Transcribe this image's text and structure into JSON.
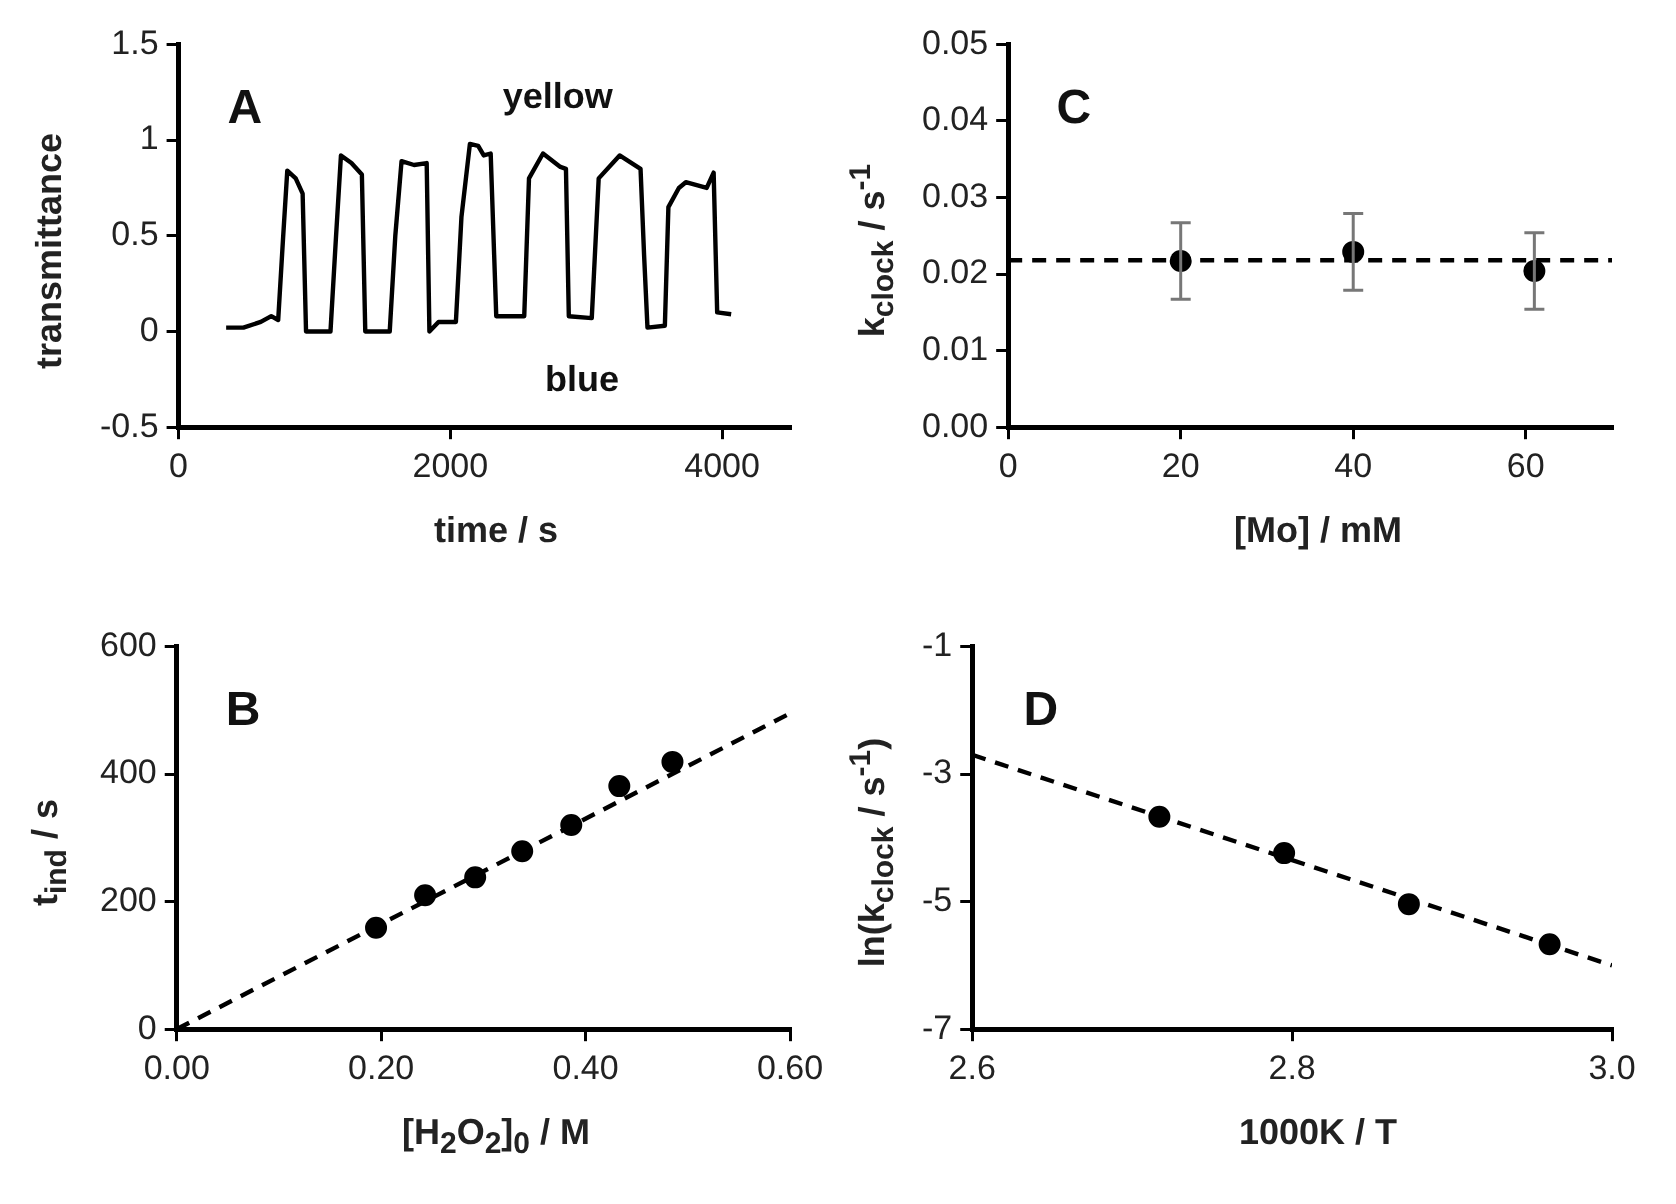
{
  "chart_data": [
    {
      "type": "line",
      "title": "A",
      "xlabel": "time / s",
      "ylabel": "transmittance",
      "annotations": [
        "yellow",
        "blue"
      ],
      "series": [
        {
          "color": "#000000",
          "x": [
            350,
            477,
            605,
            682,
            733,
            770,
            800,
            862,
            913,
            938,
            1118,
            1159,
            1195,
            1272,
            1349,
            1374,
            1554,
            1595,
            1641,
            1733,
            1826,
            1846,
            1913,
            2041,
            2082,
            2144,
            2205,
            2246,
            2297,
            2338,
            2544,
            2579,
            2682,
            2810,
            2851,
            2872,
            3041,
            3092,
            3246,
            3400,
            3426,
            3451,
            3579,
            3605,
            3682,
            3733,
            3887,
            3938,
            3964,
            4067
          ],
          "values": [
            0.02,
            0.02,
            0.05,
            0.08,
            0.06,
            0.5,
            0.84,
            0.8,
            0.72,
            0,
            0,
            0.5,
            0.92,
            0.88,
            0.82,
            0,
            0,
            0.5,
            0.89,
            0.87,
            0.88,
            0,
            0.05,
            0.05,
            0.6,
            0.98,
            0.97,
            0.92,
            0.93,
            0.08,
            0.08,
            0.8,
            0.93,
            0.86,
            0.85,
            0.08,
            0.07,
            0.8,
            0.92,
            0.85,
            0.4,
            0.02,
            0.03,
            0.65,
            0.75,
            0.78,
            0.75,
            0.83,
            0.1,
            0.09
          ]
        }
      ],
      "xlim": [
        0,
        4500
      ],
      "xticks": [
        0,
        2000,
        4000
      ],
      "ylim": [
        -0.5,
        1.5
      ],
      "yticks": [
        -0.5,
        0,
        0.5,
        1,
        1.5
      ]
    },
    {
      "type": "scatter",
      "title": "C",
      "xlabel": "[Mo] / mM",
      "ylabel": "k$_{clock}$ / s$^{-1}$",
      "marker": "circle",
      "series": [
        {
          "color": "#000000",
          "x": [
            20,
            40,
            61
          ],
          "values": [
            0.0217,
            0.0229,
            0.0204
          ],
          "errors": [
            0.005,
            0.005,
            0.005
          ]
        }
      ],
      "ref_lines": [
        {
          "axis": "y",
          "value": 0.0218,
          "color": "#000000",
          "line_style": "dashed"
        }
      ],
      "xlim": [
        0,
        70
      ],
      "xticks": [
        0,
        20,
        40,
        60
      ],
      "ylim": [
        0,
        0.05
      ],
      "yticks": [
        {
          "value": 0,
          "label": "0.00"
        },
        0.01,
        0.02,
        0.03,
        0.04,
        0.05
      ]
    },
    {
      "type": "scatter",
      "title": "B",
      "xlabel": "[H$_{2}$O$_{2}$]$_{0}$ / M",
      "ylabel": "t$_{ind}$ / s",
      "series": [
        {
          "marker": "circle",
          "color": "#000000",
          "x": [
            0.195,
            0.243,
            0.292,
            0.338,
            0.386,
            0.433,
            0.485
          ],
          "values": [
            159,
            210,
            238,
            279,
            320,
            381,
            419
          ]
        },
        {
          "type": "line",
          "marker": "none",
          "color": "#000000",
          "line_style": "dashed",
          "x": [
            0,
            0.6
          ],
          "values": [
            0,
            495
          ]
        }
      ],
      "xlim": [
        0,
        0.6
      ],
      "xticks": [
        {
          "value": 0,
          "label": "0.00"
        },
        {
          "value": 0.2,
          "label": "0.20"
        },
        {
          "value": 0.4,
          "label": "0.40"
        },
        {
          "value": 0.6,
          "label": "0.60"
        }
      ],
      "ylim": [
        0,
        600
      ],
      "yticks": [
        0,
        200,
        400,
        600
      ]
    },
    {
      "type": "scatter",
      "title": "D",
      "xlabel": "1000K / T",
      "ylabel": "ln(k$_{clock}$ / s$^{-1}$)",
      "series": [
        {
          "marker": "circle",
          "color": "#000000",
          "x": [
            2.717,
            2.795,
            2.873,
            2.961
          ],
          "values": [
            -3.67,
            -4.24,
            -5.04,
            -5.67
          ]
        },
        {
          "type": "line",
          "marker": "none",
          "color": "#000000",
          "line_style": "dashed",
          "x": [
            2.6,
            3.0
          ],
          "values": [
            -2.7,
            -6.0
          ]
        }
      ],
      "xlim": [
        2.6,
        3.0
      ],
      "xticks": [
        2.6,
        2.8,
        {
          "value": 3.0,
          "label": "3.0"
        }
      ],
      "ylim": [
        -7,
        -1
      ],
      "yticks": [
        -7,
        -5,
        -3,
        -1
      ]
    }
  ]
}
